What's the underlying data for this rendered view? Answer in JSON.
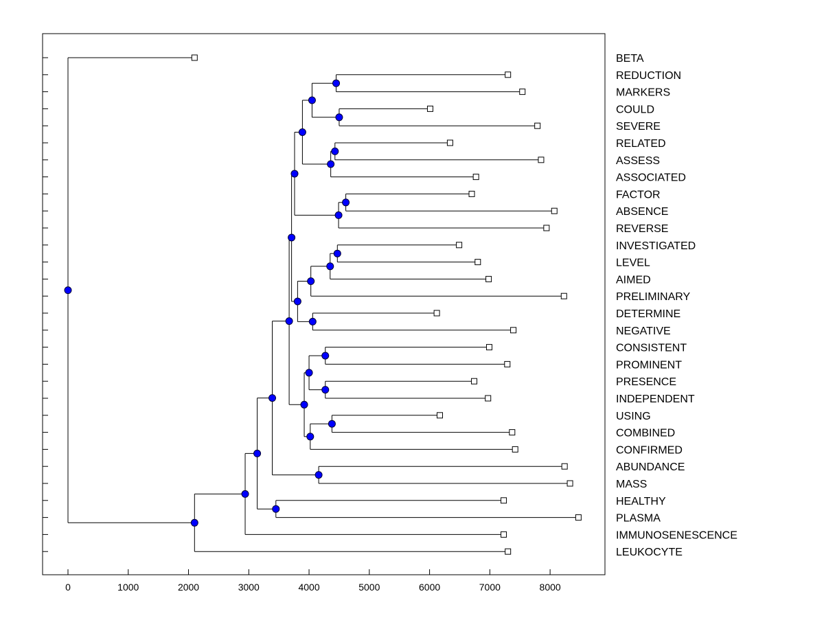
{
  "chart_data": {
    "type": "dendrogram",
    "title": "",
    "xlabel": "",
    "ylabel": "",
    "xlim": [
      -420,
      8850
    ],
    "xticks": [
      0,
      1000,
      2000,
      3000,
      4000,
      5000,
      6000,
      7000,
      8000
    ],
    "xtick_labels": [
      "0",
      "1000",
      "2000",
      "3000",
      "4000",
      "5000",
      "6000",
      "7000",
      "8000"
    ],
    "leaf_order": [
      "BETA",
      "REDUCTION",
      "MARKERS",
      "COULD",
      "SEVERE",
      "RELATED",
      "ASSESS",
      "ASSOCIATED",
      "FACTOR",
      "ABSENCE",
      "REVERSE",
      "INVESTIGATED",
      "LEVEL",
      "AIMED",
      "PRELIMINARY",
      "DETERMINE",
      "NEGATIVE",
      "CONSISTENT",
      "PROMINENT",
      "PRESENCE",
      "INDEPENDENT",
      "USING",
      "COMBINED",
      "CONFIRMED",
      "ABUNDANCE",
      "MASS",
      "HEALTHY",
      "PLASMA",
      "IMMUNOSENESCENCE",
      "LEUKOCYTE"
    ],
    "leaf_values": {
      "BETA": 2100,
      "REDUCTION": 7300,
      "MARKERS": 7540,
      "COULD": 6010,
      "SEVERE": 7790,
      "RELATED": 6340,
      "ASSESS": 7850,
      "ASSOCIATED": 6770,
      "FACTOR": 6700,
      "ABSENCE": 8070,
      "REVERSE": 7940,
      "INVESTIGATED": 6490,
      "LEVEL": 6800,
      "AIMED": 6980,
      "PRELIMINARY": 8230,
      "DETERMINE": 6120,
      "NEGATIVE": 7390,
      "CONSISTENT": 6990,
      "PROMINENT": 7290,
      "PRESENCE": 6740,
      "INDEPENDENT": 6970,
      "USING": 6170,
      "COMBINED": 7370,
      "CONFIRMED": 7420,
      "ABUNDANCE": 8240,
      "MASS": 8330,
      "HEALTHY": 7230,
      "PLASMA": 8470,
      "IMMUNOSENESCENCE": 7230,
      "LEUKOCYTE": 7300
    },
    "merges": [
      {
        "id": "n1",
        "children": [
          "REDUCTION",
          "MARKERS"
        ],
        "value": 4450
      },
      {
        "id": "n2",
        "children": [
          "COULD",
          "SEVERE"
        ],
        "value": 4500
      },
      {
        "id": "n3",
        "children": [
          "n1",
          "n2"
        ],
        "value": 4050
      },
      {
        "id": "n4",
        "children": [
          "RELATED",
          "ASSESS"
        ],
        "value": 4430
      },
      {
        "id": "n5",
        "children": [
          "n4",
          "ASSOCIATED"
        ],
        "value": 4360
      },
      {
        "id": "n6",
        "children": [
          "n3",
          "n5"
        ],
        "value": 3890
      },
      {
        "id": "n7",
        "children": [
          "FACTOR",
          "ABSENCE"
        ],
        "value": 4610
      },
      {
        "id": "n8",
        "children": [
          "n7",
          "REVERSE"
        ],
        "value": 4490
      },
      {
        "id": "n9",
        "children": [
          "n6",
          "n8"
        ],
        "value": 3760
      },
      {
        "id": "n10",
        "children": [
          "INVESTIGATED",
          "LEVEL"
        ],
        "value": 4470
      },
      {
        "id": "n11",
        "children": [
          "n10",
          "AIMED"
        ],
        "value": 4350
      },
      {
        "id": "n12",
        "children": [
          "n11",
          "PRELIMINARY"
        ],
        "value": 4030
      },
      {
        "id": "n13",
        "children": [
          "DETERMINE",
          "NEGATIVE"
        ],
        "value": 4060
      },
      {
        "id": "n14",
        "children": [
          "n12",
          "n13"
        ],
        "value": 3810
      },
      {
        "id": "n15",
        "children": [
          "n9",
          "n14"
        ],
        "value": 3710
      },
      {
        "id": "n16",
        "children": [
          "CONSISTENT",
          "PROMINENT"
        ],
        "value": 4270
      },
      {
        "id": "n17",
        "children": [
          "PRESENCE",
          "INDEPENDENT"
        ],
        "value": 4270
      },
      {
        "id": "n18",
        "children": [
          "n16",
          "n17"
        ],
        "value": 4000
      },
      {
        "id": "n19",
        "children": [
          "USING",
          "COMBINED"
        ],
        "value": 4380
      },
      {
        "id": "n20",
        "children": [
          "n19",
          "CONFIRMED"
        ],
        "value": 4020
      },
      {
        "id": "n21",
        "children": [
          "n18",
          "n20"
        ],
        "value": 3920
      },
      {
        "id": "n22",
        "children": [
          "n15",
          "n21"
        ],
        "value": 3670
      },
      {
        "id": "n23",
        "children": [
          "ABUNDANCE",
          "MASS"
        ],
        "value": 4160
      },
      {
        "id": "n24",
        "children": [
          "n22",
          "n23"
        ],
        "value": 3390
      },
      {
        "id": "n25",
        "children": [
          "HEALTHY",
          "PLASMA"
        ],
        "value": 3450
      },
      {
        "id": "n26",
        "children": [
          "n24",
          "n25"
        ],
        "value": 3140
      },
      {
        "id": "n27",
        "children": [
          "n26",
          "IMMUNOSENESCENCE"
        ],
        "value": 2940
      },
      {
        "id": "n28",
        "children": [
          "n27",
          "LEUKOCYTE"
        ],
        "value": 2100
      },
      {
        "id": "root",
        "children": [
          "BETA",
          "n28"
        ],
        "value": 0
      }
    ],
    "grid": false,
    "legend": "none"
  },
  "colors": {
    "node": "#0000ff",
    "line": "#000000",
    "leaf_marker_fill": "#ffffff"
  }
}
